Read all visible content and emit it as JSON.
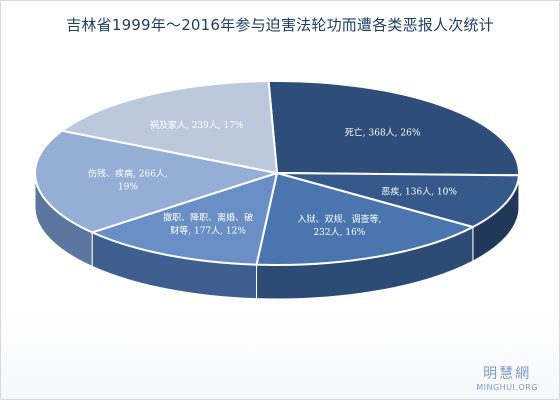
{
  "chart_data": {
    "type": "pie",
    "title": "吉林省1999年～2016年参与迫害法轮功而遭各类恶报人次统计",
    "categories": [
      "死亡",
      "恶疾",
      "入狱、双规、调查等",
      "撤职、降职、离婚、破财等",
      "伤残、疾病",
      "祸及家人"
    ],
    "values": [
      368,
      136,
      232,
      177,
      266,
      239
    ],
    "unit": "人",
    "labels": [
      [
        "死亡, 368人, 26%"
      ],
      [
        "恶疾, 136人, 10%"
      ],
      [
        "入狱、双规、调查等,",
        "232人, 16%"
      ],
      [
        "撤职、降职、离婚、破",
        "财等, 177人, 12%"
      ],
      [
        "伤残、疾病, 266人,",
        "19%"
      ],
      [
        "祸及家人, 239人, 17%"
      ]
    ],
    "colors": [
      "#2e4d79",
      "#35598a",
      "#4a75ae",
      "#6a8ec6",
      "#95aed6",
      "#bcc9dd"
    ],
    "side_colors": [
      "#1a2f50",
      "#21385b",
      "#2c4b75",
      "#3e5f8f",
      "#5c76a0",
      "#7c8ea9"
    ]
  },
  "watermark": {
    "name": "明慧網",
    "url": "MINGHUI.ORG"
  }
}
